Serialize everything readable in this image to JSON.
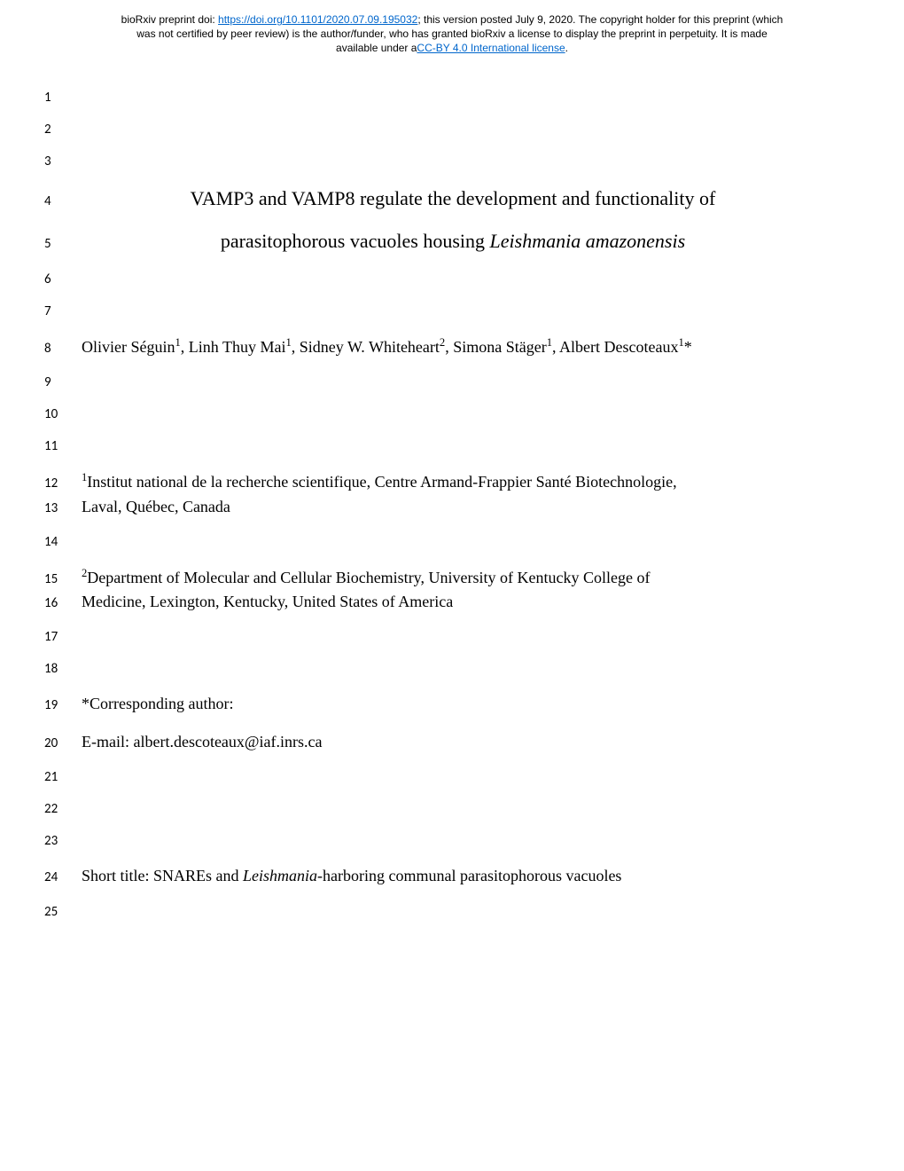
{
  "header": {
    "line1_prefix": "bioRxiv preprint doi: ",
    "doi_link": "https://doi.org/10.1101/2020.07.09.195032",
    "line1_suffix": "; this version posted July 9, 2020. The copyright holder for this preprint (which",
    "line2": "was not certified by peer review) is the author/funder, who has granted bioRxiv a license to display the preprint in perpetuity. It is made",
    "line3_prefix": "available under a",
    "license_link": "CC-BY 4.0 International license",
    "line3_suffix": "."
  },
  "lines": {
    "n1": "1",
    "n2": "2",
    "n3": "3",
    "n4": "4",
    "n5": "5",
    "n6": "6",
    "n7": "7",
    "n8": "8",
    "n9": "9",
    "n10": "10",
    "n11": "11",
    "n12": "12",
    "n13": "13",
    "n14": "14",
    "n15": "15",
    "n16": "16",
    "n17": "17",
    "n18": "18",
    "n19": "19",
    "n20": "20",
    "n21": "21",
    "n22": "22",
    "n23": "23",
    "n24": "24",
    "n25": "25"
  },
  "title": {
    "line1": "VAMP3 and VAMP8 regulate the development and functionality of",
    "line2_prefix": "parasitophorous vacuoles housing ",
    "line2_italic": "Leishmania amazonensis"
  },
  "authors": {
    "a1_name": "Olivier Séguin",
    "a1_sup": "1",
    "a2_name": "Linh Thuy Mai",
    "a2_sup": "1",
    "a3_name": "Sidney W. Whiteheart",
    "a3_sup": "2",
    "a4_name": "Simona Stäger",
    "a4_sup": "1",
    "a5_name": "Albert Descoteaux",
    "a5_sup": "1",
    "a5_mark": "*",
    "sep": ", "
  },
  "affil1": {
    "sup": "1",
    "line1": "Institut national de la recherche scientifique, Centre Armand-Frappier Santé Biotechnologie,",
    "line2": "Laval, Québec, Canada"
  },
  "affil2": {
    "sup": "2",
    "line1": "Department of Molecular and Cellular Biochemistry, University of Kentucky College of",
    "line2": "Medicine, Lexington, Kentucky, United States of America"
  },
  "corresponding": "*Corresponding author:",
  "email": "E-mail: albert.descoteaux@iaf.inrs.ca",
  "short_title": {
    "prefix": "Short title:  SNAREs and ",
    "italic": "Leishmania",
    "suffix": "-harboring communal parasitophorous vacuoles"
  }
}
